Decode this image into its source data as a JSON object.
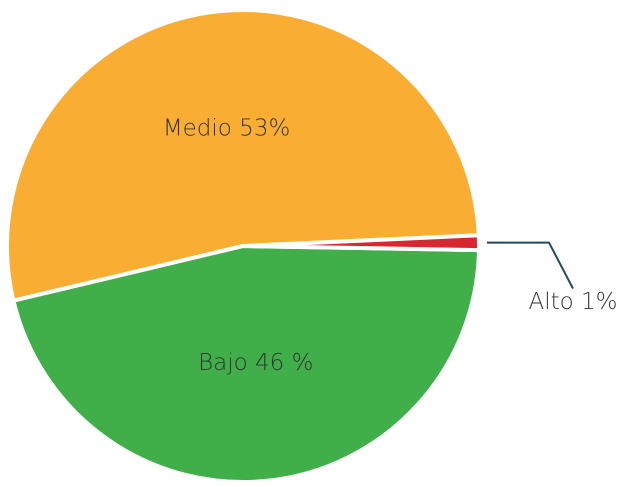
{
  "chart_data": {
    "type": "pie",
    "values": [
      53,
      46,
      1
    ],
    "value_labels": [
      "Medio 53%",
      "Bajo 46 %",
      "Alto 1%"
    ],
    "colors": [
      "#f9ae33",
      "#40ae49",
      "#d7282f"
    ]
  }
}
